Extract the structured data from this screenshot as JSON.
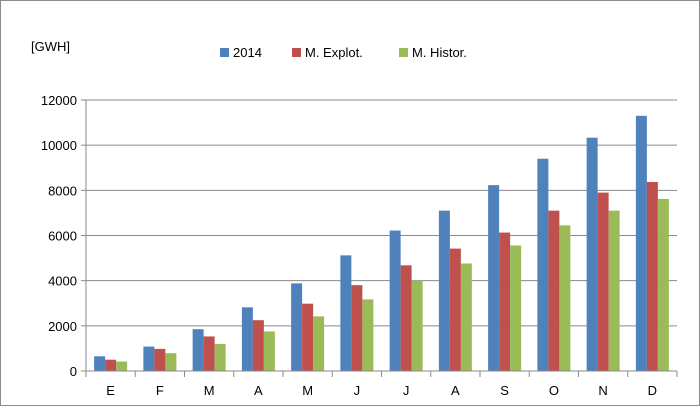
{
  "chart_data": {
    "type": "bar",
    "unit_label": "[GWH]",
    "categories": [
      "E",
      "F",
      "M",
      "A",
      "M",
      "J",
      "J",
      "A",
      "S",
      "O",
      "N",
      "D"
    ],
    "series": [
      {
        "name": "2014",
        "color": "#4f81bd",
        "values": [
          650,
          1080,
          1850,
          2820,
          3880,
          5120,
          6220,
          7100,
          8230,
          9400,
          10330,
          11300
        ]
      },
      {
        "name": "M. Explot.",
        "color": "#c0504d",
        "values": [
          500,
          980,
          1530,
          2250,
          2980,
          3800,
          4680,
          5420,
          6130,
          7100,
          7900,
          8370
        ]
      },
      {
        "name": "M. Histor.",
        "color": "#9bbb59",
        "values": [
          420,
          790,
          1200,
          1750,
          2420,
          3170,
          4000,
          4760,
          5560,
          6450,
          7100,
          7620
        ]
      }
    ],
    "yticks": [
      "0",
      "2000",
      "4000",
      "6000",
      "8000",
      "10000",
      "12000"
    ],
    "ylim": [
      0,
      12000
    ],
    "grid": true,
    "legend_position": "top-center"
  }
}
